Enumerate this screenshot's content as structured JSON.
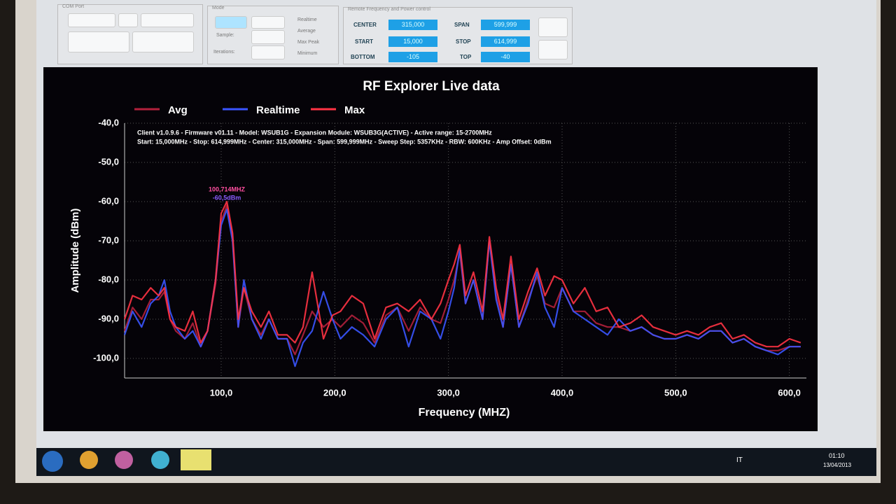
{
  "window": {
    "groups": [
      "COM Port",
      "Mode",
      "Remote Frequency and Power control"
    ],
    "mode_fields": [
      "Sample:",
      "Iterations:"
    ],
    "checkboxes": [
      "Realtime",
      "Average",
      "Max Peak",
      "Minimum"
    ],
    "freq_fields": [
      {
        "label": "CENTER",
        "value": "315,000"
      },
      {
        "label": "START",
        "value": "15,000"
      },
      {
        "label": "BOTTOM",
        "value": "-105"
      },
      {
        "label": "SPAN",
        "value": "599,999"
      },
      {
        "label": "STOP",
        "value": "614,999"
      },
      {
        "label": "TOP",
        "value": "-40"
      }
    ],
    "taskbar": {
      "language": "IT",
      "time": "01:10",
      "date": "13/04/2013"
    }
  },
  "chart_data": {
    "type": "line",
    "title": "RF Explorer Live data",
    "x_label": "Frequency (MHZ)",
    "y_label": "Amplitude (dBm)",
    "annotations": [
      "Client v1.0.9.6 - Firmware v01.11 - Model: WSUB1G - Expansion Module: WSUB3G(ACTIVE) - Active range: 15-2700MHz",
      "Start: 15,000MHz - Stop: 614,999MHz - Center: 315,000MHz - Span: 599,999MHz - Sweep Step: 5357KHz - RBW: 600KHz - Amp Offset: 0dBm",
      "100,714MHZ",
      "-60,5dBm"
    ],
    "legend": "top-left",
    "grid": true,
    "xlim": [
      15,
      615
    ],
    "ylim": [
      -105,
      -40
    ],
    "xticks": [
      {
        "value": 100,
        "label": "100,0"
      },
      {
        "value": 200,
        "label": "200,0"
      },
      {
        "value": 300,
        "label": "300,0"
      },
      {
        "value": 400,
        "label": "400,0"
      },
      {
        "value": 500,
        "label": "500,0"
      },
      {
        "value": 600,
        "label": "600,0"
      }
    ],
    "yticks": [
      {
        "value": -40,
        "label": "-40,0"
      },
      {
        "value": -50,
        "label": "-50,0"
      },
      {
        "value": -60,
        "label": "-60,0"
      },
      {
        "value": -70,
        "label": "-70,0"
      },
      {
        "value": -80,
        "label": "-80,0"
      },
      {
        "value": -90,
        "label": "-90,0"
      },
      {
        "value": -100,
        "label": "-100,0"
      }
    ],
    "x": [
      15,
      22,
      30,
      38,
      45,
      50,
      55,
      60,
      68,
      75,
      82,
      88,
      95,
      100,
      105,
      110,
      115,
      120,
      127,
      135,
      142,
      150,
      158,
      165,
      172,
      180,
      190,
      198,
      205,
      215,
      225,
      235,
      245,
      255,
      265,
      275,
      285,
      293,
      300,
      305,
      310,
      315,
      322,
      330,
      336,
      342,
      348,
      355,
      362,
      370,
      378,
      385,
      393,
      400,
      410,
      420,
      430,
      440,
      450,
      460,
      470,
      480,
      490,
      500,
      510,
      520,
      530,
      540,
      550,
      560,
      570,
      580,
      590,
      600,
      610
    ],
    "series": [
      {
        "name": "Avg",
        "color": "#b3203c",
        "values": [
          -93,
          -87,
          -90,
          -85,
          -85,
          -83,
          -90,
          -93,
          -95,
          -91,
          -97,
          -93,
          -81,
          -65,
          -61,
          -69,
          -92,
          -82,
          -90,
          -94,
          -90,
          -95,
          -95,
          -99,
          -94,
          -88,
          -92,
          -90,
          -92,
          -89,
          -91,
          -96,
          -89,
          -87,
          -93,
          -87,
          -90,
          -91,
          -85,
          -80,
          -73,
          -86,
          -80,
          -90,
          -70,
          -84,
          -92,
          -76,
          -92,
          -85,
          -79,
          -86,
          -87,
          -82,
          -88,
          -88,
          -91,
          -92,
          -92,
          -93,
          -92,
          -94,
          -95,
          -95,
          -94,
          -95,
          -93,
          -93,
          -96,
          -95,
          -97,
          -98,
          -98,
          -97,
          -97
        ]
      },
      {
        "name": "Realtime",
        "color": "#3a55ff",
        "values": [
          -94,
          -88,
          -92,
          -86,
          -84,
          -80,
          -88,
          -92,
          -95,
          -93,
          -97,
          -93,
          -80,
          -66,
          -62,
          -70,
          -92,
          -80,
          -90,
          -95,
          -90,
          -95,
          -95,
          -102,
          -96,
          -93,
          -83,
          -90,
          -95,
          -92,
          -94,
          -97,
          -90,
          -87,
          -97,
          -88,
          -90,
          -95,
          -88,
          -82,
          -72,
          -86,
          -80,
          -90,
          -70,
          -85,
          -92,
          -76,
          -92,
          -86,
          -78,
          -87,
          -92,
          -82,
          -88,
          -90,
          -92,
          -94,
          -90,
          -93,
          -92,
          -94,
          -95,
          -95,
          -94,
          -95,
          -93,
          -93,
          -96,
          -95,
          -97,
          -98,
          -99,
          -97,
          -97
        ]
      },
      {
        "name": "Max",
        "color": "#ff3344",
        "values": [
          -90,
          -84,
          -85,
          -82,
          -84,
          -82,
          -90,
          -92,
          -93,
          -88,
          -96,
          -93,
          -80,
          -63,
          -60,
          -68,
          -90,
          -82,
          -88,
          -92,
          -88,
          -94,
          -94,
          -96,
          -92,
          -78,
          -95,
          -89,
          -88,
          -84,
          -86,
          -95,
          -87,
          -86,
          -88,
          -85,
          -90,
          -86,
          -80,
          -76,
          -71,
          -84,
          -78,
          -88,
          -69,
          -82,
          -90,
          -74,
          -90,
          -83,
          -77,
          -84,
          -79,
          -80,
          -86,
          -82,
          -88,
          -87,
          -92,
          -91,
          -89,
          -92,
          -93,
          -94,
          -93,
          -94,
          -92,
          -91,
          -95,
          -94,
          -96,
          -97,
          -97,
          -95,
          -96
        ]
      }
    ]
  }
}
